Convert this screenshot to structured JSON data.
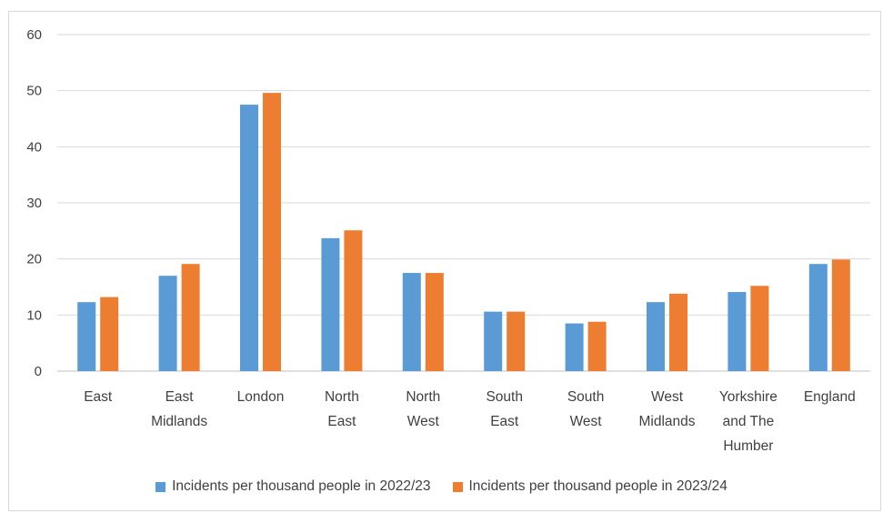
{
  "chart_data": {
    "type": "bar",
    "title": "",
    "xlabel": "",
    "ylabel": "",
    "ylim": [
      0,
      60
    ],
    "yticks": [
      0,
      10,
      20,
      30,
      40,
      50,
      60
    ],
    "grid": true,
    "legend_position": "bottom",
    "categories": [
      [
        "East"
      ],
      [
        "East",
        "Midlands"
      ],
      [
        "London"
      ],
      [
        "North",
        "East"
      ],
      [
        "North",
        "West"
      ],
      [
        "South",
        "East"
      ],
      [
        "South",
        "West"
      ],
      [
        "West",
        "Midlands"
      ],
      [
        "Yorkshire",
        "and The",
        "Humber"
      ],
      [
        "England"
      ]
    ],
    "series": [
      {
        "name": "Incidents per thousand people in 2022/23",
        "color": "#5b9bd5",
        "values": [
          12.3,
          17.0,
          47.5,
          23.7,
          17.5,
          10.6,
          8.5,
          12.3,
          14.1,
          19.1
        ]
      },
      {
        "name": "Incidents per thousand people in 2023/24",
        "color": "#ed7d31",
        "values": [
          13.2,
          19.1,
          49.6,
          25.1,
          17.5,
          10.6,
          8.8,
          13.8,
          15.2,
          19.9
        ]
      }
    ]
  }
}
